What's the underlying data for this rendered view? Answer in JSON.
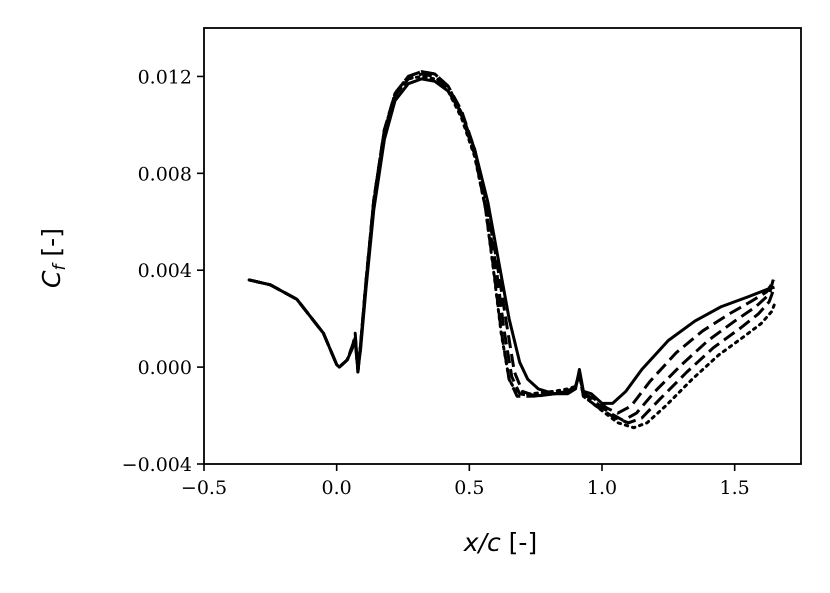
{
  "chart_data": {
    "type": "line",
    "xlabel_symbol": "x/c",
    "xlabel_unit": " [-]",
    "ylabel_symbol": "C",
    "ylabel_subscript": "f",
    "ylabel_unit": " [-]",
    "xlim": [
      -0.5,
      1.75
    ],
    "ylim": [
      -0.004,
      0.014
    ],
    "grid": false,
    "xticks": [
      -0.5,
      0.0,
      0.5,
      1.0,
      1.5
    ],
    "xtick_labels": [
      "−0.5",
      "0.0",
      "0.5",
      "1.0",
      "1.5"
    ],
    "yticks": [
      -0.004,
      0.0,
      0.004,
      0.008,
      0.012
    ],
    "ytick_labels": [
      "−0.004",
      "0.000",
      "0.004",
      "0.008",
      "0.012"
    ],
    "line_color": "#000000",
    "series": [
      {
        "style": "solid",
        "points": [
          [
            -0.33,
            0.0036
          ],
          [
            -0.25,
            0.0034
          ],
          [
            -0.15,
            0.0028
          ],
          [
            -0.05,
            0.0014
          ],
          [
            0.0,
            0.0001
          ],
          [
            0.01,
            0.0
          ],
          [
            0.04,
            0.0003
          ],
          [
            0.06,
            0.0008
          ],
          [
            0.07,
            0.0012
          ],
          [
            0.08,
            -0.0001
          ],
          [
            0.09,
            0.0007
          ],
          [
            0.11,
            0.0032
          ],
          [
            0.14,
            0.0065
          ],
          [
            0.18,
            0.0094
          ],
          [
            0.22,
            0.011
          ],
          [
            0.27,
            0.0117
          ],
          [
            0.32,
            0.0119
          ],
          [
            0.37,
            0.0118
          ],
          [
            0.42,
            0.0114
          ],
          [
            0.47,
            0.0105
          ],
          [
            0.52,
            0.009
          ],
          [
            0.57,
            0.0068
          ],
          [
            0.61,
            0.0044
          ],
          [
            0.65,
            0.002
          ],
          [
            0.69,
            0.0002
          ],
          [
            0.72,
            -0.0005
          ],
          [
            0.76,
            -0.0009
          ],
          [
            0.82,
            -0.0011
          ],
          [
            0.87,
            -0.0011
          ],
          [
            0.9,
            -0.0009
          ],
          [
            0.915,
            -0.0001
          ],
          [
            0.93,
            -0.001
          ],
          [
            0.96,
            -0.0011
          ],
          [
            1.0,
            -0.0015
          ],
          [
            1.04,
            -0.0015
          ],
          [
            1.09,
            -0.001
          ],
          [
            1.15,
            -0.0001
          ],
          [
            1.25,
            0.0011
          ],
          [
            1.35,
            0.0019
          ],
          [
            1.45,
            0.0025
          ],
          [
            1.55,
            0.0029
          ],
          [
            1.62,
            0.0032
          ],
          [
            1.65,
            0.0033
          ]
        ]
      },
      {
        "style": "dashed",
        "points": [
          [
            -0.33,
            0.0036
          ],
          [
            -0.25,
            0.0034
          ],
          [
            -0.15,
            0.0028
          ],
          [
            -0.05,
            0.0014
          ],
          [
            0.0,
            0.0001
          ],
          [
            0.01,
            0.0
          ],
          [
            0.04,
            0.0003
          ],
          [
            0.06,
            0.0008
          ],
          [
            0.07,
            0.0014
          ],
          [
            0.08,
            -0.0002
          ],
          [
            0.09,
            0.0008
          ],
          [
            0.11,
            0.0034
          ],
          [
            0.14,
            0.0068
          ],
          [
            0.18,
            0.0097
          ],
          [
            0.22,
            0.0113
          ],
          [
            0.27,
            0.012
          ],
          [
            0.32,
            0.0122
          ],
          [
            0.37,
            0.0121
          ],
          [
            0.42,
            0.0116
          ],
          [
            0.47,
            0.0106
          ],
          [
            0.52,
            0.009
          ],
          [
            0.56,
            0.007
          ],
          [
            0.6,
            0.0046
          ],
          [
            0.64,
            0.0018
          ],
          [
            0.67,
            -0.0002
          ],
          [
            0.7,
            -0.001
          ],
          [
            0.75,
            -0.0012
          ],
          [
            0.82,
            -0.0011
          ],
          [
            0.87,
            -0.001
          ],
          [
            0.9,
            -0.0008
          ],
          [
            0.915,
            -0.0002
          ],
          [
            0.93,
            -0.0011
          ],
          [
            0.97,
            -0.0013
          ],
          [
            1.02,
            -0.0017
          ],
          [
            1.06,
            -0.0019
          ],
          [
            1.11,
            -0.0016
          ],
          [
            1.18,
            -0.0006
          ],
          [
            1.28,
            0.0006
          ],
          [
            1.38,
            0.0015
          ],
          [
            1.48,
            0.0022
          ],
          [
            1.56,
            0.0027
          ],
          [
            1.62,
            0.0031
          ],
          [
            1.65,
            0.0036
          ]
        ]
      },
      {
        "style": "dashed",
        "points": [
          [
            -0.33,
            0.0036
          ],
          [
            -0.25,
            0.0034
          ],
          [
            -0.15,
            0.0028
          ],
          [
            -0.05,
            0.0014
          ],
          [
            0.0,
            0.0001
          ],
          [
            0.01,
            0.0
          ],
          [
            0.04,
            0.0003
          ],
          [
            0.06,
            0.0009
          ],
          [
            0.07,
            0.0013
          ],
          [
            0.08,
            -0.0001
          ],
          [
            0.09,
            0.0009
          ],
          [
            0.11,
            0.0035
          ],
          [
            0.14,
            0.0069
          ],
          [
            0.18,
            0.0098
          ],
          [
            0.22,
            0.0112
          ],
          [
            0.27,
            0.0119
          ],
          [
            0.32,
            0.0121
          ],
          [
            0.37,
            0.012
          ],
          [
            0.42,
            0.0115
          ],
          [
            0.47,
            0.0104
          ],
          [
            0.52,
            0.0088
          ],
          [
            0.56,
            0.0067
          ],
          [
            0.6,
            0.0042
          ],
          [
            0.63,
            0.0016
          ],
          [
            0.66,
            -0.0004
          ],
          [
            0.69,
            -0.0011
          ],
          [
            0.74,
            -0.0012
          ],
          [
            0.82,
            -0.0011
          ],
          [
            0.87,
            -0.001
          ],
          [
            0.9,
            -0.0008
          ],
          [
            0.915,
            -0.0003
          ],
          [
            0.93,
            -0.0011
          ],
          [
            0.98,
            -0.0015
          ],
          [
            1.03,
            -0.0019
          ],
          [
            1.08,
            -0.0022
          ],
          [
            1.13,
            -0.0019
          ],
          [
            1.2,
            -0.001
          ],
          [
            1.3,
            0.0001
          ],
          [
            1.4,
            0.0011
          ],
          [
            1.5,
            0.0019
          ],
          [
            1.58,
            0.0025
          ],
          [
            1.63,
            0.003
          ],
          [
            1.65,
            0.0038
          ]
        ]
      },
      {
        "style": "dashed",
        "points": [
          [
            -0.33,
            0.0036
          ],
          [
            -0.25,
            0.0034
          ],
          [
            -0.15,
            0.0028
          ],
          [
            -0.05,
            0.0014
          ],
          [
            0.0,
            0.0001
          ],
          [
            0.01,
            0.0
          ],
          [
            0.04,
            0.0003
          ],
          [
            0.06,
            0.0009
          ],
          [
            0.07,
            0.0011
          ],
          [
            0.08,
            -0.0002
          ],
          [
            0.09,
            0.0009
          ],
          [
            0.11,
            0.0035
          ],
          [
            0.14,
            0.0069
          ],
          [
            0.18,
            0.0098
          ],
          [
            0.22,
            0.0113
          ],
          [
            0.27,
            0.012
          ],
          [
            0.32,
            0.0122
          ],
          [
            0.37,
            0.0121
          ],
          [
            0.42,
            0.0116
          ],
          [
            0.47,
            0.0105
          ],
          [
            0.52,
            0.0088
          ],
          [
            0.56,
            0.0066
          ],
          [
            0.59,
            0.0042
          ],
          [
            0.62,
            0.0015
          ],
          [
            0.65,
            -0.0005
          ],
          [
            0.68,
            -0.0012
          ],
          [
            0.73,
            -0.0012
          ],
          [
            0.82,
            -0.0011
          ],
          [
            0.87,
            -0.001
          ],
          [
            0.9,
            -0.0008
          ],
          [
            0.915,
            -0.0003
          ],
          [
            0.93,
            -0.0012
          ],
          [
            0.99,
            -0.0017
          ],
          [
            1.05,
            -0.0021
          ],
          [
            1.1,
            -0.0023
          ],
          [
            1.15,
            -0.0021
          ],
          [
            1.22,
            -0.0013
          ],
          [
            1.32,
            -0.0002
          ],
          [
            1.42,
            0.0008
          ],
          [
            1.52,
            0.0016
          ],
          [
            1.59,
            0.0022
          ],
          [
            1.63,
            0.0027
          ],
          [
            1.65,
            0.0033
          ]
        ]
      },
      {
        "style": "dotted",
        "points": [
          [
            -0.33,
            0.0036
          ],
          [
            -0.25,
            0.0034
          ],
          [
            -0.15,
            0.0028
          ],
          [
            -0.05,
            0.0014
          ],
          [
            0.0,
            0.0001
          ],
          [
            0.01,
            0.0
          ],
          [
            0.04,
            0.0003
          ],
          [
            0.06,
            0.0009
          ],
          [
            0.07,
            0.0012
          ],
          [
            0.08,
            -0.0002
          ],
          [
            0.09,
            0.0009
          ],
          [
            0.11,
            0.0035
          ],
          [
            0.14,
            0.0069
          ],
          [
            0.18,
            0.0098
          ],
          [
            0.22,
            0.0112
          ],
          [
            0.27,
            0.0119
          ],
          [
            0.32,
            0.012
          ],
          [
            0.37,
            0.0119
          ],
          [
            0.42,
            0.0114
          ],
          [
            0.47,
            0.0103
          ],
          [
            0.52,
            0.0087
          ],
          [
            0.56,
            0.0066
          ],
          [
            0.59,
            0.0041
          ],
          [
            0.62,
            0.0014
          ],
          [
            0.65,
            -0.0005
          ],
          [
            0.68,
            -0.0011
          ],
          [
            0.73,
            -0.0011
          ],
          [
            0.82,
            -0.001
          ],
          [
            0.87,
            -0.0009
          ],
          [
            0.9,
            -0.0008
          ],
          [
            0.915,
            -0.0003
          ],
          [
            0.93,
            -0.0012
          ],
          [
            1.0,
            -0.0018
          ],
          [
            1.06,
            -0.0023
          ],
          [
            1.12,
            -0.0025
          ],
          [
            1.17,
            -0.0023
          ],
          [
            1.24,
            -0.0016
          ],
          [
            1.34,
            -0.0005
          ],
          [
            1.44,
            0.0005
          ],
          [
            1.54,
            0.0013
          ],
          [
            1.6,
            0.0018
          ],
          [
            1.64,
            0.0023
          ],
          [
            1.65,
            0.0026
          ]
        ]
      }
    ]
  }
}
